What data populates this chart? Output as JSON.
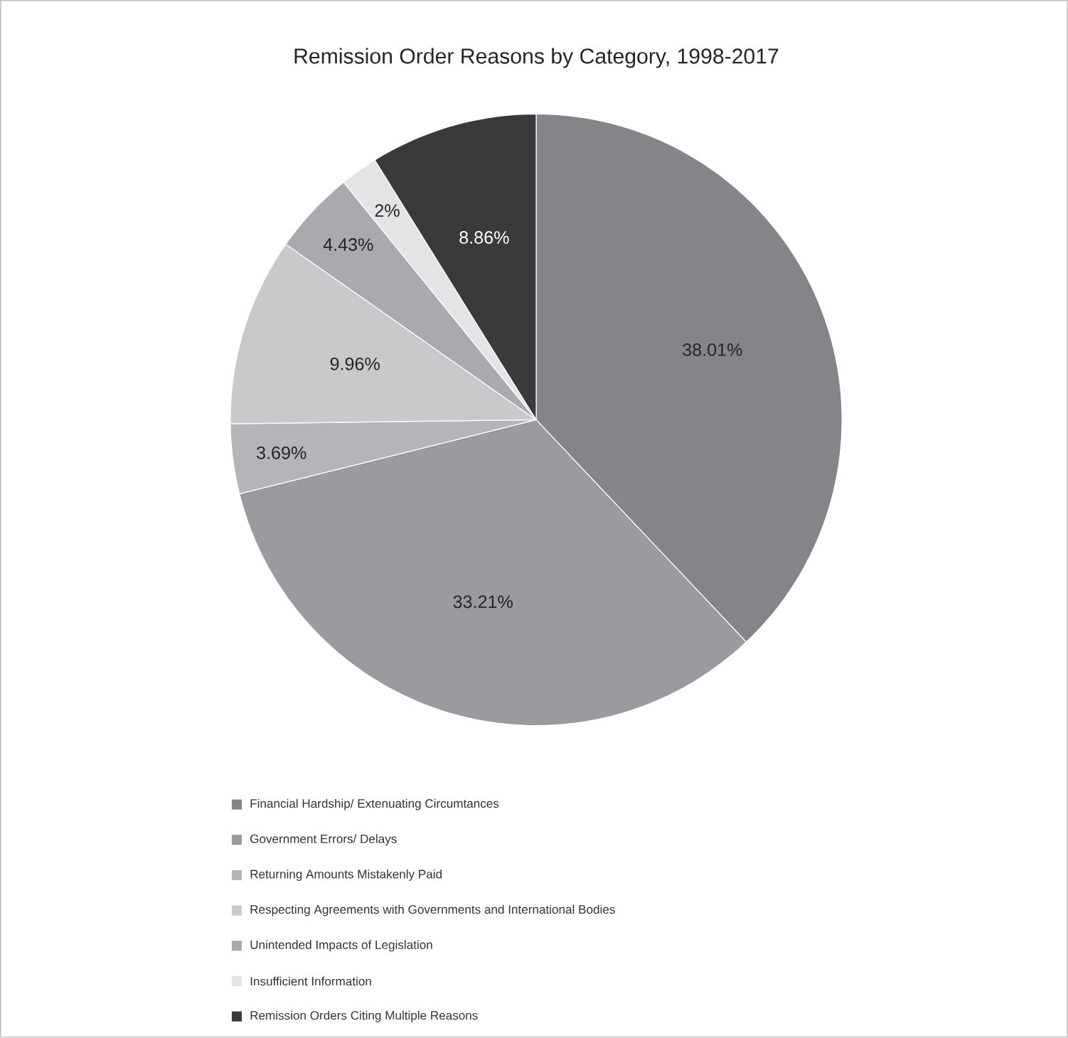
{
  "chart_data": {
    "type": "pie",
    "title": "Remission Order Reasons by Category, 1998-2017",
    "categories": [
      "Financial Hardship/ Extenuating Circumtances",
      "Government Errors/ Delays",
      "Returning Amounts Mistakenly Paid",
      "Respecting Agreements with Governments and International Bodies",
      "Unintended Impacts of Legislation",
      "Insufficient Information",
      "Remission Orders Citing Multiple Reasons"
    ],
    "values": [
      38.01,
      33.21,
      3.69,
      9.96,
      4.43,
      2,
      8.86
    ],
    "value_labels": [
      "38.01%",
      "33.21%",
      "3.69%",
      "9.96%",
      "4.43%",
      "2%",
      "8.86%"
    ],
    "colors": [
      "#858589",
      "#9a9b9e",
      "#b4b5b8",
      "#c8c9cb",
      "#a9aaad",
      "#e3e4e6",
      "#3a393b"
    ],
    "legend": "bottom"
  }
}
